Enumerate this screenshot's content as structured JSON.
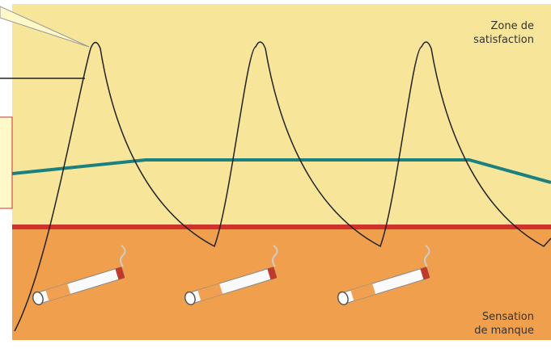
{
  "zone_satisfaction": {
    "lines": [
      "Zone de",
      "satisfaction"
    ]
  },
  "zone_manque": {
    "lines": [
      "Sensation",
      "de manque"
    ]
  }
}
